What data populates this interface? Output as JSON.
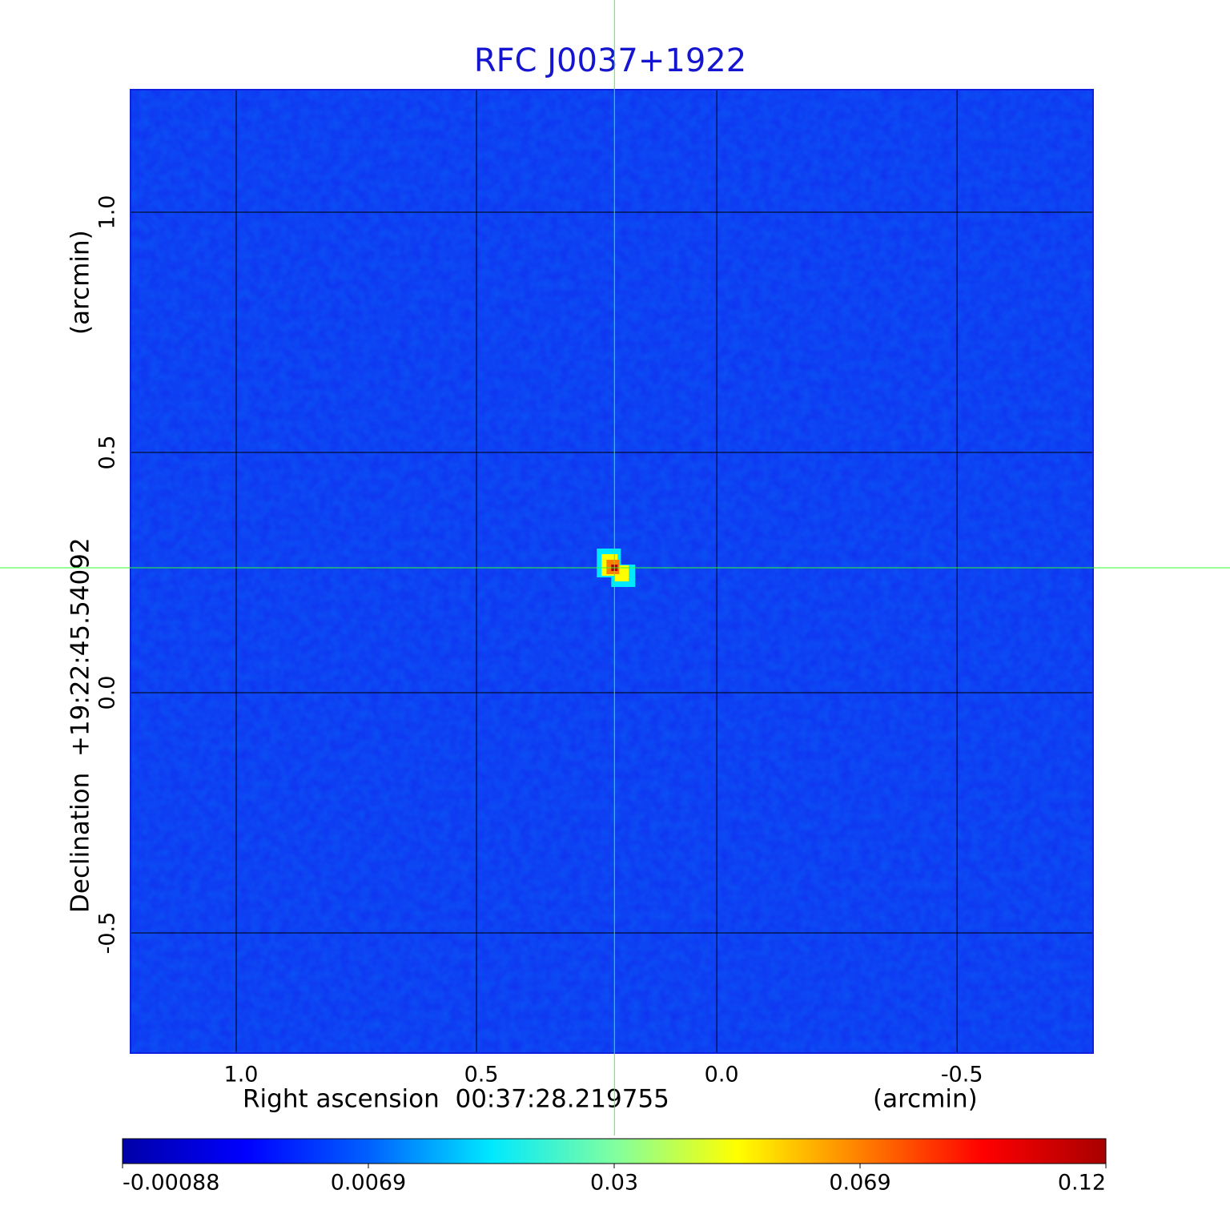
{
  "chart_data": {
    "type": "image",
    "title": "RFC J0037+1922",
    "xlabel": "Right ascension  00:37:28.219755",
    "xunit": "(arcmin)",
    "ylabel": "Declination  +19:22:45.54092",
    "yunit": "(arcmin)",
    "xlim": [
      1.22,
      -0.783
    ],
    "ylim": [
      -0.75,
      1.255
    ],
    "xticks": [
      {
        "value": 1,
        "label": "1.0"
      },
      0.5,
      {
        "value": 0,
        "label": "0.0"
      },
      -0.5
    ],
    "yticks": [
      {
        "value": 1,
        "label": "1.0"
      },
      0.5,
      {
        "value": 0,
        "label": "0.0"
      },
      -0.5
    ],
    "grid": true,
    "background_color": "#1030f0",
    "crosshair_color": "#30ff30",
    "source": {
      "x": 0.213,
      "y": 0.26,
      "peak": 0.12
    },
    "colorbar": {
      "lim": [
        -0.00088,
        0.12
      ],
      "ticks": [
        -0.00088,
        0.0069,
        0.03,
        0.069,
        0.12
      ],
      "colors": [
        "#0000a8",
        "#0000ff",
        "#0060ff",
        "#00e8ff",
        "#80ffa0",
        "#ffff00",
        "#ff8000",
        "#ff0000",
        "#a80000"
      ]
    }
  }
}
